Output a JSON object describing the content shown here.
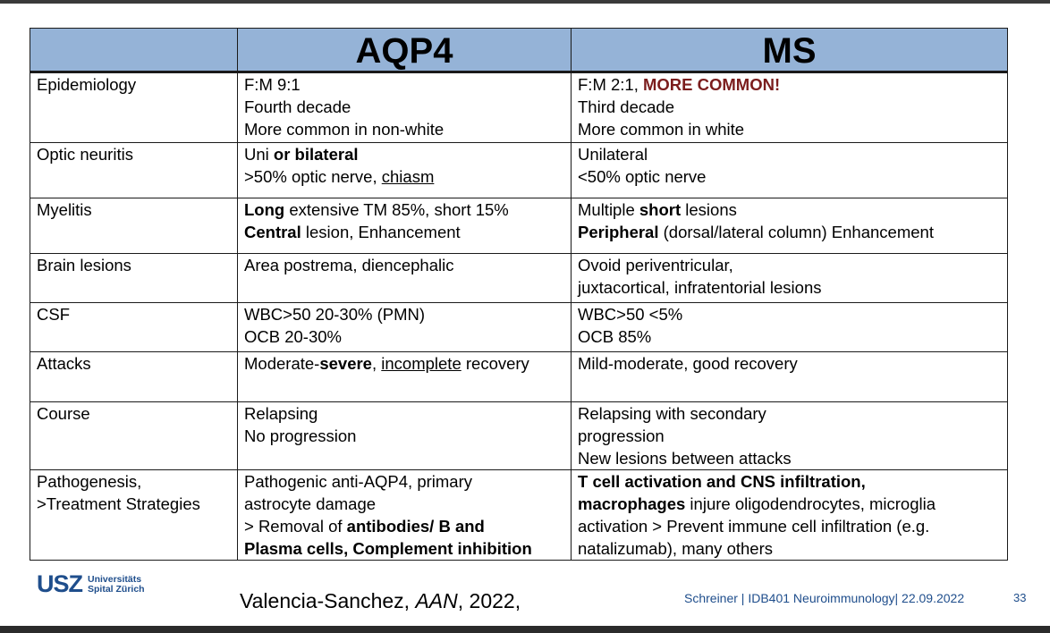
{
  "table": {
    "headers": [
      "",
      "AQP4",
      "MS"
    ],
    "rows": [
      {
        "label": [
          "Epidemiology"
        ],
        "aqp4": [
          [
            "F:M 9:1"
          ],
          [
            "Fourth decade"
          ],
          [
            "More common in non-white"
          ]
        ],
        "ms": [
          [
            "F:M 2:1, ",
            {
              "t": "MORE COMMON!",
              "s": "red"
            }
          ],
          [
            "Third decade"
          ],
          [
            "More common in white"
          ]
        ]
      },
      {
        "label": [
          "Optic neuritis"
        ],
        "aqp4": [
          [
            "Uni ",
            {
              "t": "or bilateral",
              "s": "b"
            }
          ],
          [
            ">50% optic nerve, ",
            {
              "t": "chiasm ",
              "s": "u"
            }
          ]
        ],
        "ms": [
          [
            "Unilateral"
          ],
          [
            "<50% optic nerve"
          ]
        ]
      },
      {
        "label": [
          "Myelitis"
        ],
        "aqp4": [
          [
            {
              "t": "Long",
              "s": "b"
            },
            " extensive TM 85%, short 15%"
          ],
          [
            {
              "t": "Central",
              "s": "b"
            },
            " lesion, Enhancement"
          ]
        ],
        "ms": [
          [
            "Multiple ",
            {
              "t": "short",
              "s": "b"
            },
            " lesions"
          ],
          [
            {
              "t": "Peripheral",
              "s": "b"
            },
            " (dorsal/lateral column) Enhancement"
          ]
        ]
      },
      {
        "label": [
          "Brain lesions"
        ],
        "aqp4": [
          [
            "Area postrema, diencephalic"
          ]
        ],
        "ms": [
          [
            "Ovoid periventricular,"
          ],
          [
            "juxtacortical, infratentorial lesions"
          ]
        ]
      },
      {
        "label": [
          "CSF"
        ],
        "aqp4": [
          [
            "WBC>50 20-30% (PMN)"
          ],
          [
            "OCB 20-30%"
          ]
        ],
        "ms": [
          [
            "WBC>50 <5%"
          ],
          [
            "OCB 85%"
          ]
        ]
      },
      {
        "label": [
          "Attacks"
        ],
        "aqp4": [
          [
            "Moderate-",
            {
              "t": "severe",
              "s": "b"
            },
            ", ",
            {
              "t": "incomplete",
              "s": "u"
            },
            " recovery"
          ]
        ],
        "ms": [
          [
            "Mild-moderate, good recovery"
          ]
        ]
      },
      {
        "label": [
          "Course"
        ],
        "aqp4": [
          [
            "Relapsing"
          ],
          [
            "No progression"
          ]
        ],
        "ms": [
          [
            "Relapsing with secondary"
          ],
          [
            "progression"
          ],
          [
            "New lesions between attacks"
          ]
        ]
      },
      {
        "label": [
          "Pathogenesis,",
          ">Treatment Strategies"
        ],
        "aqp4": [
          [
            " Pathogenic anti-AQP4, primary"
          ],
          [
            "astrocyte damage"
          ],
          [
            " > Removal of ",
            {
              "t": "antibodies/ B and",
              "s": "b"
            }
          ],
          [
            {
              "t": "Plasma cells, Complement inhibition",
              "s": "b"
            }
          ]
        ],
        "ms": [
          [
            {
              "t": " T cell activation and CNS infiltration,",
              "s": "b"
            }
          ],
          [
            {
              "t": "macrophages",
              "s": "b"
            },
            " injure oligodendrocytes, microglia"
          ],
          [
            "activation > Prevent immune cell infiltration (e.g."
          ],
          [
            "natalizumab), many others"
          ]
        ]
      }
    ]
  },
  "footer": {
    "logo_mark": "USZ",
    "logo_line1": "Universitäts",
    "logo_line2": "Spital Zürich",
    "citation_author": "Valencia-Sanchez, ",
    "citation_journal": "AAN",
    "citation_year": ", 2022,",
    "footer_text": "Schreiner | IDB401 Neuroimmunology| 22.09.2022",
    "page_number": "33"
  }
}
